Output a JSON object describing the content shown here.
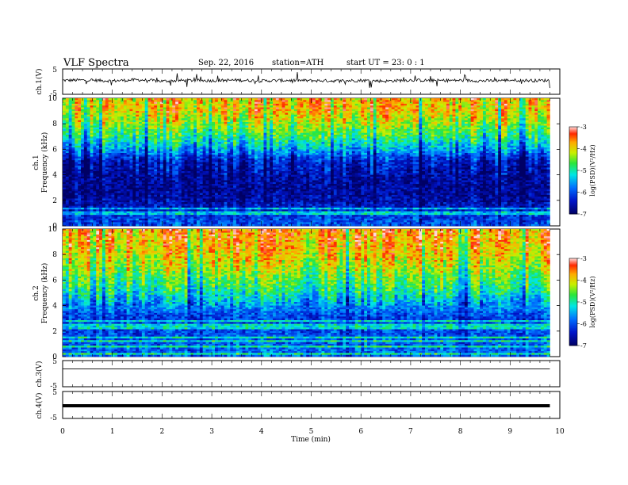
{
  "header": {
    "title": "VLF  Spectra",
    "date": "Sep. 22, 2016",
    "station": "station=ATH",
    "start": "start  UT =   23: 0  : 1"
  },
  "chart_data": [
    {
      "type": "line",
      "panel": "ch1-waveform",
      "ylabel": "ch.1(V)",
      "ylim": [
        -5,
        5
      ],
      "yticks": [
        "5",
        "-5"
      ],
      "x": [
        0,
        0.5,
        1,
        1.5,
        2,
        2.5,
        3,
        3.5,
        4,
        4.5,
        5,
        5.5,
        6,
        6.5,
        7,
        7.5,
        8,
        8.5,
        9,
        9.5,
        9.8
      ],
      "values": [
        0.5,
        0.6,
        0.3,
        0.7,
        0.2,
        0.5,
        0.4,
        0.6,
        0.3,
        0.5,
        0.4,
        0.3,
        0.5,
        0.2,
        0.6,
        0.4,
        0.5,
        0.3,
        0.6,
        0.4,
        0.5
      ],
      "color": "#000000"
    },
    {
      "type": "heatmap",
      "panel": "ch1-spectrogram",
      "ylabel": "ch.1",
      "ylabel2": "Frequency  (kHz)",
      "ylim": [
        0,
        10
      ],
      "yticks": [
        "0",
        "2",
        "4",
        "6",
        "8",
        "10"
      ],
      "xlim": [
        0,
        9.8
      ],
      "colorbar": {
        "label": "log(PSD)(V²/Hz)",
        "range": [
          -7,
          -3
        ],
        "ticks": [
          "-3",
          "-4",
          "-5",
          "-6",
          "-7"
        ]
      },
      "band_profile": [
        {
          "freq_khz": 0.3,
          "log_psd": -6.0
        },
        {
          "freq_khz": 1.0,
          "log_psd": -6.2
        },
        {
          "freq_khz": 2.0,
          "log_psd": -6.6
        },
        {
          "freq_khz": 3.0,
          "log_psd": -6.7
        },
        {
          "freq_khz": 4.0,
          "log_psd": -6.6
        },
        {
          "freq_khz": 5.0,
          "log_psd": -6.4
        },
        {
          "freq_khz": 6.0,
          "log_psd": -5.5
        },
        {
          "freq_khz": 7.0,
          "log_psd": -4.8
        },
        {
          "freq_khz": 8.0,
          "log_psd": -4.3
        },
        {
          "freq_khz": 9.0,
          "log_psd": -3.9
        },
        {
          "freq_khz": 10.0,
          "log_psd": -3.8
        }
      ]
    },
    {
      "type": "heatmap",
      "panel": "ch2-spectrogram",
      "ylabel": "ch.2",
      "ylabel2": "Frequency  (kHz)",
      "ylim": [
        0,
        10
      ],
      "yticks": [
        "0",
        "2",
        "4",
        "6",
        "8",
        "10"
      ],
      "xlim": [
        0,
        9.8
      ],
      "colorbar": {
        "label": "log(PSD)(V²/Hz)",
        "range": [
          -7,
          -3
        ],
        "ticks": [
          "-3",
          "-4",
          "-5",
          "-6",
          "-7"
        ]
      },
      "band_profile": [
        {
          "freq_khz": 0.3,
          "log_psd": -5.8
        },
        {
          "freq_khz": 1.0,
          "log_psd": -5.9
        },
        {
          "freq_khz": 2.0,
          "log_psd": -6.0
        },
        {
          "freq_khz": 3.0,
          "log_psd": -6.1
        },
        {
          "freq_khz": 4.0,
          "log_psd": -5.6
        },
        {
          "freq_khz": 5.0,
          "log_psd": -5.0
        },
        {
          "freq_khz": 6.0,
          "log_psd": -4.6
        },
        {
          "freq_khz": 7.0,
          "log_psd": -4.2
        },
        {
          "freq_khz": 8.0,
          "log_psd": -3.9
        },
        {
          "freq_khz": 9.0,
          "log_psd": -3.7
        },
        {
          "freq_khz": 10.0,
          "log_psd": -3.6
        }
      ]
    },
    {
      "type": "line",
      "panel": "ch3-waveform",
      "ylabel": "ch.3(V)",
      "ylim": [
        -5,
        5
      ],
      "yticks": [
        "5",
        "-5"
      ],
      "x": [
        0,
        9.8
      ],
      "values": [
        1.8,
        1.8
      ],
      "color": "#000000"
    },
    {
      "type": "line",
      "panel": "ch4-waveform",
      "ylabel": "ch.4(V)",
      "ylim": [
        -5,
        5
      ],
      "yticks": [
        "5",
        "-5"
      ],
      "x": [
        0,
        9.8
      ],
      "values": [
        -0.3,
        -0.3
      ],
      "color": "#000000"
    }
  ],
  "xaxis": {
    "label": "Time  (min)",
    "xlim": [
      0,
      10
    ],
    "ticks": [
      "0",
      "1",
      "2",
      "3",
      "4",
      "5",
      "6",
      "7",
      "8",
      "9",
      "10"
    ]
  }
}
